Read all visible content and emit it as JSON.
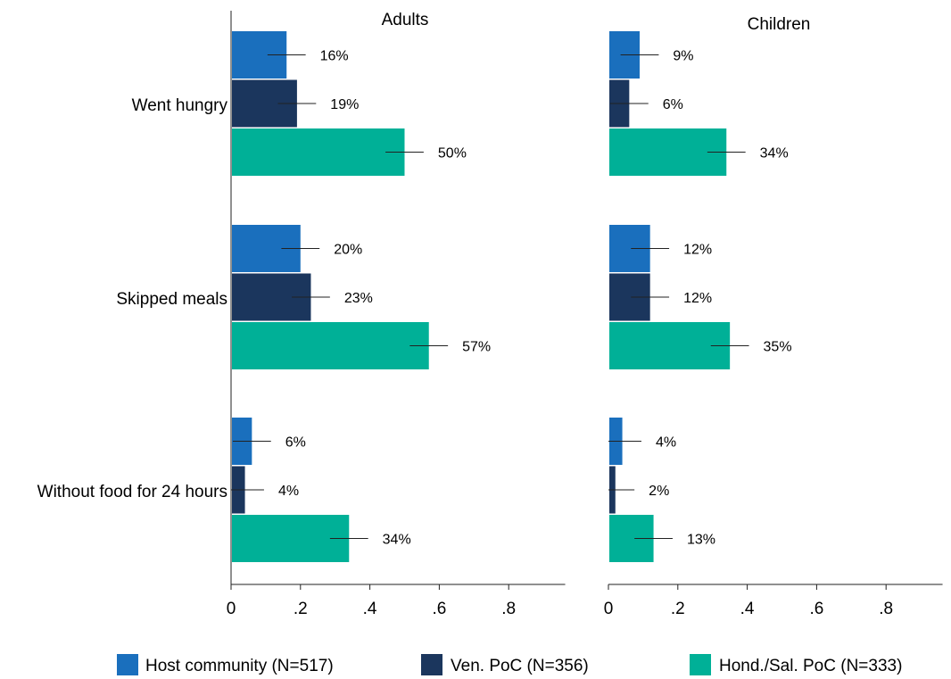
{
  "chart_data": {
    "type": "bar",
    "orientation": "horizontal",
    "panels": [
      {
        "title": "Adults",
        "categories": [
          "Went hungry",
          "Skipped meals",
          "Without food for 24 hours"
        ],
        "series": [
          {
            "name": "Host community (N=517)",
            "values": [
              0.16,
              0.2,
              0.06
            ],
            "labels": [
              "16%",
              "20%",
              "6%"
            ],
            "color": "#1a6fbd"
          },
          {
            "name": "Ven. PoC (N=356)",
            "values": [
              0.19,
              0.23,
              0.04
            ],
            "labels": [
              "19%",
              "23%",
              "4%"
            ],
            "color": "#1b365d"
          },
          {
            "name": "Hond./Sal. PoC (N=333)",
            "values": [
              0.5,
              0.57,
              0.34
            ],
            "labels": [
              "50%",
              "57%",
              "34%"
            ],
            "color": "#00b097"
          }
        ]
      },
      {
        "title": "Children",
        "categories": [
          "Went hungry",
          "Skipped meals",
          "Without food for 24 hours"
        ],
        "series": [
          {
            "name": "Host community (N=517)",
            "values": [
              0.09,
              0.12,
              0.04
            ],
            "labels": [
              "9%",
              "12%",
              "4%"
            ],
            "color": "#1a6fbd"
          },
          {
            "name": "Ven. PoC (N=356)",
            "values": [
              0.06,
              0.12,
              0.02
            ],
            "labels": [
              "6%",
              "12%",
              "2%"
            ],
            "color": "#1b365d"
          },
          {
            "name": "Hond./Sal. PoC (N=333)",
            "values": [
              0.34,
              0.35,
              0.13
            ],
            "labels": [
              "34%",
              "35%",
              "13%"
            ],
            "color": "#00b097"
          }
        ]
      }
    ],
    "xlim": [
      0,
      0.95
    ],
    "xticks": [
      0,
      0.2,
      0.4,
      0.6,
      0.8
    ],
    "xtick_labels": [
      "0",
      ".2",
      ".4",
      ".6",
      ".8"
    ],
    "legend": {
      "position": "bottom",
      "entries": [
        "Host community (N=517)",
        "Ven. PoC (N=356)",
        "Hond./Sal. PoC (N=333)"
      ]
    },
    "grid": false
  }
}
